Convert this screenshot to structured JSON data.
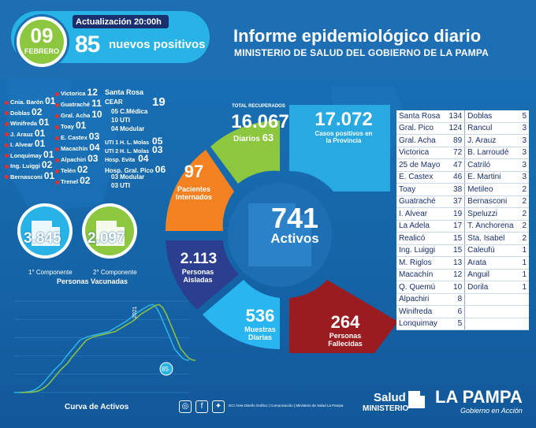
{
  "header": {
    "day": "09",
    "month": "FEBRERO",
    "update": "Actualización 20:00h",
    "positives_num": "85",
    "positives_label": "nuevos positivos",
    "title": "Informe epidemiológico diario",
    "subtitle": "MINISTERIO DE SALUD DEL GOBIERNO DE LA PAMPA"
  },
  "localities_left": [
    {
      "name": "Cnia. Barón",
      "num": "01"
    },
    {
      "name": "Doblas",
      "num": "02"
    },
    {
      "name": "Winifreda",
      "num": "01"
    },
    {
      "name": "J. Arauz",
      "num": "01"
    },
    {
      "name": "I. Alvear",
      "num": "01"
    },
    {
      "name": "Lonquimay",
      "num": "01"
    },
    {
      "name": "Ing. Luiggi",
      "num": "02"
    },
    {
      "name": "Bernasconi",
      "num": "01"
    }
  ],
  "localities_mid": [
    {
      "name": "Victorica",
      "num": "12"
    },
    {
      "name": "Guatraché",
      "num": "11"
    },
    {
      "name": "Gral. Acha",
      "num": "10"
    },
    {
      "name": "Toay",
      "num": "01"
    },
    {
      "name": "E. Castex",
      "num": "03"
    },
    {
      "name": "Macachín",
      "num": "04"
    },
    {
      "name": "Alpachiri",
      "num": "03"
    },
    {
      "name": "Telén",
      "num": "02"
    },
    {
      "name": "Trenel",
      "num": "02"
    }
  ],
  "santa_rosa": {
    "title": "Santa Rosa",
    "cear": "CEAR",
    "cear_num": "19",
    "rows": [
      {
        "num": "05",
        "label": "C.Médica"
      },
      {
        "num": "10",
        "label": "UTI"
      },
      {
        "num": "04",
        "label": "Modular"
      },
      {
        "num": "",
        "label": "UTI 1 H. L. Molas",
        "val": "05"
      },
      {
        "num": "",
        "label": "UTI 2 H. L. Molas",
        "val": "03"
      },
      {
        "num": "",
        "label": "Hosp. Evita",
        "val": "04"
      }
    ],
    "pico_title": "Hosp. Gral. Pico",
    "pico_num": "06",
    "pico_rows": [
      {
        "num": "03",
        "label": "Modular"
      },
      {
        "num": "03",
        "label": "UTI"
      }
    ]
  },
  "vaccines": {
    "first": "3.845",
    "first_label": "1° Componente",
    "second": "2.097",
    "second_label": "2° Componente",
    "caption": "Personas Vacunadas"
  },
  "chart_data": {
    "type": "line",
    "title": "Curva de Activos",
    "series": [
      {
        "color": "#2fb5e8",
        "values": [
          2,
          3,
          5,
          10,
          20,
          40,
          80,
          140,
          220,
          320,
          420,
          520,
          600,
          680,
          800,
          900,
          1000,
          1100,
          1200,
          1240,
          1280,
          1300,
          1320,
          1340,
          1360,
          1380,
          1400,
          1450,
          1500,
          1550,
          1600,
          1650,
          1720,
          1800,
          1850,
          1900,
          1950,
          2000,
          2020,
          1950,
          1800,
          1600,
          1400,
          1200,
          1000,
          900,
          800,
          750,
          741
        ]
      },
      {
        "color": "#8dc63f",
        "values": [
          2,
          3,
          5,
          10,
          20,
          40,
          80,
          140,
          220,
          320,
          420,
          520,
          600,
          680,
          800,
          900,
          1000,
          1100,
          1200,
          1240,
          1280,
          1300,
          1320,
          1340,
          1360,
          1380,
          1400,
          1450,
          1500,
          1550,
          1600,
          1650,
          1720,
          1800,
          1850,
          1900,
          1950,
          2000,
          2020,
          1950,
          1800,
          1600,
          1400,
          1200,
          1000,
          900,
          800,
          750,
          741
        ]
      }
    ],
    "ylim": [
      0,
      2100
    ],
    "peak_label": "2021",
    "end_label": "85"
  },
  "segments": {
    "recovered_title": "TOTAL RECUPERADOS",
    "recovered": "16.067",
    "recovered_daily_label": "Diarios",
    "recovered_daily": "63",
    "cases": "17.072",
    "cases_label": "Casos positivos en la Provincia",
    "hospital": "97",
    "hospital_label": "Pacientes Internados",
    "active": "741",
    "active_label": "Activos",
    "isolated": "2.113",
    "isolated_label": "Personas Aisladas",
    "samples": "536",
    "samples_label": "Muestras Diarias",
    "deaths": "264",
    "deaths_label": "Personas Fallecidas"
  },
  "table_left": [
    [
      "Santa Rosa",
      "134"
    ],
    [
      "Gral. Pico",
      "124"
    ],
    [
      "Gral. Acha",
      "89"
    ],
    [
      "Victorica",
      "72"
    ],
    [
      "25 de Mayo",
      "47"
    ],
    [
      "E. Castex",
      "46"
    ],
    [
      "Toay",
      "38"
    ],
    [
      "Guatraché",
      "37"
    ],
    [
      "I. Alvear",
      "19"
    ],
    [
      "La Adela",
      "17"
    ],
    [
      "Realicó",
      "15"
    ],
    [
      "Ing. Luiggi",
      "15"
    ],
    [
      "M. Riglos",
      "13"
    ],
    [
      "Macachín",
      "12"
    ],
    [
      "Q. Quemú",
      "10"
    ],
    [
      "Alpachiri",
      "8"
    ],
    [
      "Winifreda",
      "6"
    ],
    [
      "Lonquimay",
      "5"
    ]
  ],
  "table_right": [
    [
      "Doblas",
      "5"
    ],
    [
      "Rancul",
      "3"
    ],
    [
      "J. Arauz",
      "3"
    ],
    [
      "B. Larroudé",
      "3"
    ],
    [
      "Catriló",
      "3"
    ],
    [
      "E. Martini",
      "3"
    ],
    [
      "Metileo",
      "2"
    ],
    [
      "Bernasconi",
      "2"
    ],
    [
      "Speluzzi",
      "2"
    ],
    [
      "T. Anchorena",
      "2"
    ],
    [
      "Sta. Isabel",
      "2"
    ],
    [
      "Caleufú",
      "1"
    ],
    [
      "Arata",
      "1"
    ],
    [
      "Anguil",
      "1"
    ],
    [
      "Dorila",
      "1"
    ]
  ],
  "footer": {
    "credits": "DCI Área Diseño Gráfico | Comunicación | Ministerio de Salud La Pampa",
    "salud": "Salud",
    "ministerio": "MINISTERIO",
    "brand": "LA PAMPA",
    "slogan": "Gobierno en Acción"
  },
  "colors": {
    "recovered": "#8dc63f",
    "cases": "#28a9e1",
    "hospital": "#f58220",
    "isolated": "#2c3e8f",
    "samples": "#29b6f0",
    "deaths": "#9a1b20",
    "center": "#1d6eb3"
  }
}
